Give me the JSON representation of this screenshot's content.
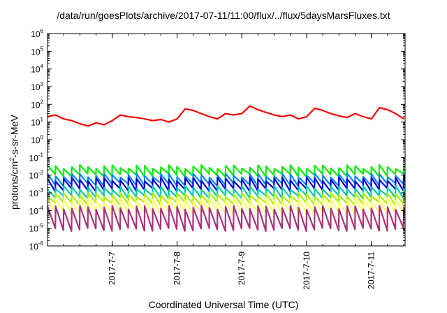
{
  "chart_data": {
    "type": "line",
    "title": "/data/run/goesPlots/archive/2017-07-11/11:00/flux/../flux/5daysMarsFluxes.txt",
    "xlabel": "Coordinated Universal Time (UTC)",
    "ylabel": {
      "pre": "protons/cm",
      "sup": "2",
      "post": "-s-sr-MeV"
    },
    "x_axis": {
      "type": "date",
      "range": [
        "2017-07-06T00:00",
        "2017-07-11T12:30"
      ],
      "ticks": [
        "2017-7-7",
        "2017-7-8",
        "2017-7-9",
        "2017-7-10",
        "2017-7-11"
      ]
    },
    "y_axis": {
      "scale": "log",
      "range": [
        1e-06,
        1000000.0
      ],
      "ticks": [
        {
          "base": "10",
          "exp": "-6"
        },
        {
          "base": "10",
          "exp": "-5"
        },
        {
          "base": "10",
          "exp": "-4"
        },
        {
          "base": "10",
          "exp": "-3"
        },
        {
          "base": "10",
          "exp": "-2"
        },
        {
          "base": "10",
          "exp": "-1"
        },
        {
          "base": "10",
          "exp": "0"
        },
        {
          "base": "10",
          "exp": "1"
        },
        {
          "base": "10",
          "exp": "2"
        },
        {
          "base": "10",
          "exp": "3"
        },
        {
          "base": "10",
          "exp": "4"
        },
        {
          "base": "10",
          "exp": "5"
        },
        {
          "base": "10",
          "exp": "6"
        }
      ]
    },
    "grid": false,
    "legend": "none",
    "series": [
      {
        "color": "#ff0000",
        "x": [
          "2017-07-06T00:00",
          "2017-07-06T03:00",
          "2017-07-06T06:00",
          "2017-07-06T09:00",
          "2017-07-06T12:00",
          "2017-07-06T15:00",
          "2017-07-06T18:00",
          "2017-07-06T21:00",
          "2017-07-07T00:00",
          "2017-07-07T03:00",
          "2017-07-07T06:00",
          "2017-07-07T09:00",
          "2017-07-07T12:00",
          "2017-07-07T15:00",
          "2017-07-07T18:00",
          "2017-07-07T21:00",
          "2017-07-08T00:00",
          "2017-07-08T03:00",
          "2017-07-08T06:00",
          "2017-07-08T09:00",
          "2017-07-08T12:00",
          "2017-07-08T15:00",
          "2017-07-08T18:00",
          "2017-07-08T21:00",
          "2017-07-09T00:00",
          "2017-07-09T03:00",
          "2017-07-09T06:00",
          "2017-07-09T09:00",
          "2017-07-09T12:00",
          "2017-07-09T15:00",
          "2017-07-09T18:00",
          "2017-07-09T21:00",
          "2017-07-10T00:00",
          "2017-07-10T03:00",
          "2017-07-10T06:00",
          "2017-07-10T09:00",
          "2017-07-10T12:00",
          "2017-07-10T15:00",
          "2017-07-10T18:00",
          "2017-07-10T21:00",
          "2017-07-11T00:00",
          "2017-07-11T03:00",
          "2017-07-11T06:00",
          "2017-07-11T09:00",
          "2017-07-11T12:00"
        ],
        "y": [
          20,
          25,
          15,
          12,
          8,
          6,
          9,
          7,
          12,
          25,
          20,
          18,
          15,
          12,
          14,
          10,
          15,
          55,
          45,
          30,
          20,
          15,
          30,
          25,
          30,
          80,
          50,
          35,
          25,
          20,
          25,
          15,
          20,
          60,
          45,
          30,
          22,
          18,
          30,
          20,
          15,
          65,
          50,
          30,
          15
        ]
      },
      {
        "color": "#00ee00",
        "y_peak": 0.03,
        "y_trough": 0.01
      },
      {
        "color": "#0088ff",
        "y_peak": 0.01,
        "y_trough": 0.003
      },
      {
        "color": "#0000dd",
        "y_peak": 0.006,
        "y_trough": 0.0015
      },
      {
        "color": "#00ccaa",
        "y_peak": 0.002,
        "y_trough": 0.0006
      },
      {
        "color": "#aaee00",
        "y_peak": 0.0008,
        "y_trough": 0.00025
      },
      {
        "color": "#ffff66",
        "y_peak": 0.0004,
        "y_trough": 8e-05
      },
      {
        "color": "#aa3377",
        "y_peak": 0.00015,
        "y_trough": 8.5e-06
      }
    ]
  }
}
